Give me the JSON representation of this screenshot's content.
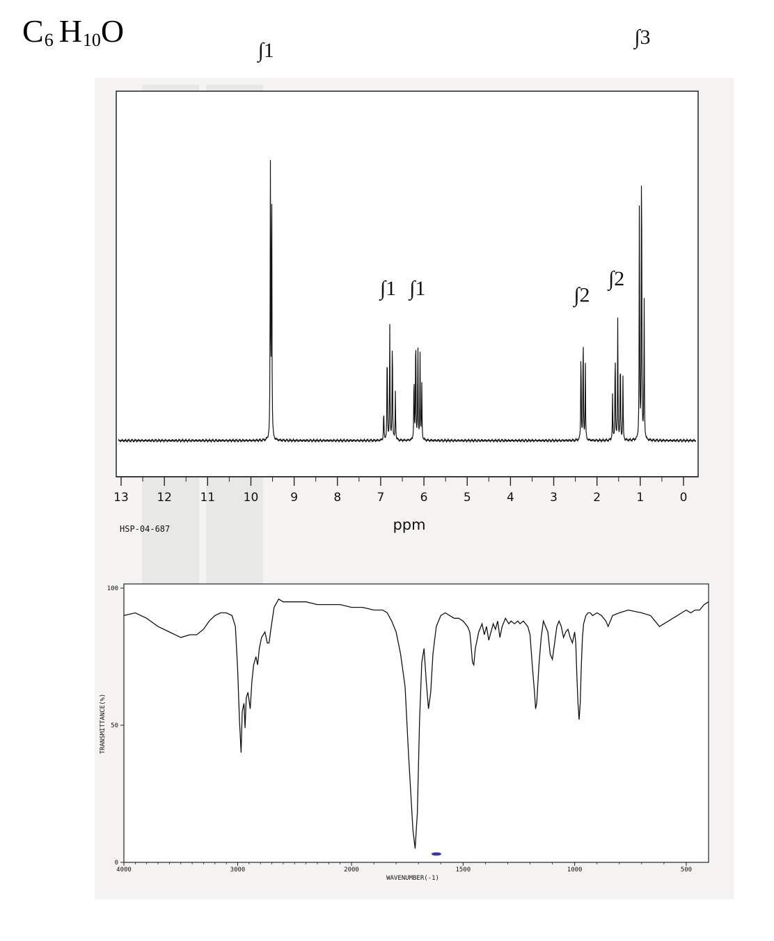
{
  "formula": {
    "c": "C",
    "c_sub": "6",
    "h": "H",
    "h_sub": "10",
    "o": "O"
  },
  "chart_data": [
    {
      "type": "line",
      "chart": "1H NMR spectrum",
      "xlabel": "ppm",
      "code": "HSP-04-687",
      "xlim": [
        13,
        0
      ],
      "ticks": [
        "13",
        "12",
        "11",
        "10",
        "9",
        "8",
        "7",
        "6",
        "5",
        "4",
        "3",
        "2",
        "1",
        "0"
      ],
      "baseline": 0.0,
      "peaks": [
        {
          "ppm": 9.55,
          "intensity": 0.84
        },
        {
          "ppm": 9.52,
          "intensity": 0.9
        },
        {
          "ppm": 6.93,
          "intensity": 0.1
        },
        {
          "ppm": 6.85,
          "intensity": 0.31
        },
        {
          "ppm": 6.79,
          "intensity": 0.35
        },
        {
          "ppm": 6.73,
          "intensity": 0.35
        },
        {
          "ppm": 6.66,
          "intensity": 0.15
        },
        {
          "ppm": 6.23,
          "intensity": 0.21
        },
        {
          "ppm": 6.19,
          "intensity": 0.37
        },
        {
          "ppm": 6.14,
          "intensity": 0.3
        },
        {
          "ppm": 6.09,
          "intensity": 0.26
        },
        {
          "ppm": 6.05,
          "intensity": 0.17
        },
        {
          "ppm": 2.37,
          "intensity": 0.3
        },
        {
          "ppm": 2.32,
          "intensity": 0.35
        },
        {
          "ppm": 2.27,
          "intensity": 0.24
        },
        {
          "ppm": 1.64,
          "intensity": 0.14
        },
        {
          "ppm": 1.58,
          "intensity": 0.3
        },
        {
          "ppm": 1.52,
          "intensity": 0.37
        },
        {
          "ppm": 1.46,
          "intensity": 0.28
        },
        {
          "ppm": 1.4,
          "intensity": 0.19
        },
        {
          "ppm": 1.02,
          "intensity": 0.75
        },
        {
          "ppm": 0.97,
          "intensity": 1.0
        },
        {
          "ppm": 0.91,
          "intensity": 0.43
        }
      ],
      "integrals": [
        {
          "label": "∫1",
          "ppm": 9.65,
          "intensity": 1.16
        },
        {
          "label": "∫1",
          "ppm": 6.83,
          "intensity": 0.44
        },
        {
          "label": "∫1",
          "ppm": 6.15,
          "intensity": 0.44
        },
        {
          "label": "∫2",
          "ppm": 2.35,
          "intensity": 0.42
        },
        {
          "label": "∫2",
          "ppm": 1.55,
          "intensity": 0.47
        },
        {
          "label": "∫3",
          "ppm": 0.95,
          "intensity": 1.2
        }
      ]
    },
    {
      "type": "line",
      "chart": "IR spectrum",
      "xlabel": "WAVENUMBER(-1)",
      "ylabel": "TRANSMITTANCE(%)",
      "xlim": [
        4000,
        400
      ],
      "ylim": [
        0,
        100
      ],
      "x_ticks": [
        "4000",
        "3000",
        "2000",
        "1500",
        "1000",
        "500"
      ],
      "y_ticks": [
        "100",
        "50",
        "0"
      ],
      "points": [
        [
          4000,
          90
        ],
        [
          3900,
          91
        ],
        [
          3800,
          89
        ],
        [
          3700,
          86
        ],
        [
          3600,
          84
        ],
        [
          3500,
          82
        ],
        [
          3420,
          83
        ],
        [
          3360,
          83
        ],
        [
          3300,
          85
        ],
        [
          3250,
          88
        ],
        [
          3200,
          90
        ],
        [
          3150,
          91
        ],
        [
          3100,
          91
        ],
        [
          3050,
          90
        ],
        [
          3020,
          86
        ],
        [
          3000,
          70
        ],
        [
          2985,
          52
        ],
        [
          2970,
          40
        ],
        [
          2960,
          55
        ],
        [
          2945,
          58
        ],
        [
          2935,
          49
        ],
        [
          2925,
          60
        ],
        [
          2910,
          62
        ],
        [
          2890,
          56
        ],
        [
          2875,
          66
        ],
        [
          2860,
          72
        ],
        [
          2840,
          75
        ],
        [
          2825,
          72
        ],
        [
          2810,
          78
        ],
        [
          2790,
          82
        ],
        [
          2760,
          84
        ],
        [
          2740,
          80
        ],
        [
          2725,
          80
        ],
        [
          2705,
          86
        ],
        [
          2680,
          93
        ],
        [
          2640,
          96
        ],
        [
          2600,
          95
        ],
        [
          2500,
          95
        ],
        [
          2400,
          95
        ],
        [
          2300,
          94
        ],
        [
          2200,
          94
        ],
        [
          2100,
          94
        ],
        [
          2000,
          93
        ],
        [
          1950,
          93
        ],
        [
          1900,
          92
        ],
        [
          1860,
          92
        ],
        [
          1840,
          91
        ],
        [
          1820,
          88
        ],
        [
          1800,
          84
        ],
        [
          1780,
          76
        ],
        [
          1760,
          64
        ],
        [
          1745,
          40
        ],
        [
          1735,
          26
        ],
        [
          1725,
          12
        ],
        [
          1715,
          5
        ],
        [
          1705,
          18
        ],
        [
          1695,
          52
        ],
        [
          1685,
          73
        ],
        [
          1675,
          78
        ],
        [
          1665,
          66
        ],
        [
          1655,
          56
        ],
        [
          1645,
          62
        ],
        [
          1635,
          76
        ],
        [
          1620,
          86
        ],
        [
          1600,
          90
        ],
        [
          1580,
          91
        ],
        [
          1560,
          90
        ],
        [
          1540,
          89
        ],
        [
          1520,
          89
        ],
        [
          1500,
          88
        ],
        [
          1490,
          87
        ],
        [
          1480,
          86
        ],
        [
          1470,
          84
        ],
        [
          1465,
          80
        ],
        [
          1458,
          73
        ],
        [
          1452,
          72
        ],
        [
          1445,
          78
        ],
        [
          1430,
          84
        ],
        [
          1415,
          87
        ],
        [
          1405,
          83
        ],
        [
          1395,
          86
        ],
        [
          1385,
          81
        ],
        [
          1375,
          84
        ],
        [
          1365,
          87
        ],
        [
          1355,
          85
        ],
        [
          1345,
          88
        ],
        [
          1335,
          82
        ],
        [
          1325,
          86
        ],
        [
          1310,
          89
        ],
        [
          1295,
          87
        ],
        [
          1285,
          88
        ],
        [
          1270,
          87
        ],
        [
          1255,
          88
        ],
        [
          1245,
          87
        ],
        [
          1230,
          88
        ],
        [
          1220,
          87
        ],
        [
          1210,
          86
        ],
        [
          1200,
          83
        ],
        [
          1190,
          72
        ],
        [
          1180,
          62
        ],
        [
          1175,
          56
        ],
        [
          1170,
          58
        ],
        [
          1160,
          72
        ],
        [
          1150,
          82
        ],
        [
          1140,
          88
        ],
        [
          1130,
          86
        ],
        [
          1120,
          84
        ],
        [
          1110,
          76
        ],
        [
          1100,
          74
        ],
        [
          1090,
          80
        ],
        [
          1080,
          86
        ],
        [
          1070,
          88
        ],
        [
          1060,
          86
        ],
        [
          1050,
          82
        ],
        [
          1040,
          84
        ],
        [
          1030,
          85
        ],
        [
          1020,
          82
        ],
        [
          1010,
          80
        ],
        [
          1000,
          84
        ],
        [
          995,
          80
        ],
        [
          990,
          68
        ],
        [
          985,
          58
        ],
        [
          980,
          52
        ],
        [
          975,
          58
        ],
        [
          970,
          72
        ],
        [
          965,
          82
        ],
        [
          960,
          87
        ],
        [
          950,
          90
        ],
        [
          940,
          91
        ],
        [
          930,
          91
        ],
        [
          920,
          90
        ],
        [
          900,
          91
        ],
        [
          880,
          90
        ],
        [
          860,
          88
        ],
        [
          850,
          86
        ],
        [
          840,
          88
        ],
        [
          830,
          90
        ],
        [
          800,
          91
        ],
        [
          760,
          92
        ],
        [
          700,
          91
        ],
        [
          660,
          90
        ],
        [
          640,
          88
        ],
        [
          620,
          86
        ],
        [
          600,
          87
        ],
        [
          580,
          88
        ],
        [
          560,
          89
        ],
        [
          540,
          90
        ],
        [
          520,
          91
        ],
        [
          500,
          92
        ],
        [
          480,
          91
        ],
        [
          460,
          92
        ],
        [
          440,
          92
        ],
        [
          420,
          94
        ],
        [
          400,
          95
        ]
      ]
    }
  ]
}
